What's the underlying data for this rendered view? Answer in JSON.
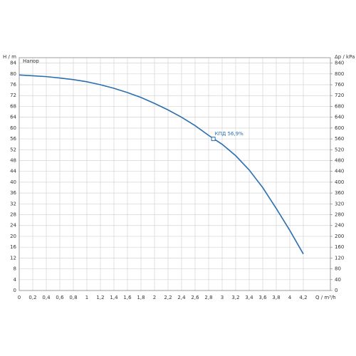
{
  "chart_data": {
    "type": "line",
    "y_label": "H / m",
    "series_label": "Напор",
    "y2_label": "Δp / kPa",
    "x_label": "Q / m³/h",
    "x": [
      0,
      0.2,
      0.4,
      0.6,
      0.8,
      1.0,
      1.2,
      1.4,
      1.6,
      1.8,
      2.0,
      2.2,
      2.4,
      2.6,
      2.8,
      3.0,
      3.2,
      3.4,
      3.6,
      3.8,
      4.0,
      4.2
    ],
    "series": [
      {
        "color": "#2a6fb0",
        "values": [
          79.6,
          79.3,
          79.0,
          78.5,
          77.9,
          77.1,
          76.0,
          74.7,
          73.1,
          71.3,
          69.1,
          66.7,
          64.0,
          60.9,
          57.3,
          54.0,
          49.8,
          44.5,
          38.0,
          30.3,
          22.2,
          13.5
        ]
      }
    ],
    "marker": {
      "x": 2.87,
      "y": 56,
      "label": "КПД 56,9%"
    },
    "xlim": [
      0,
      4.6
    ],
    "xticks": [
      0,
      {
        "value": 0.2,
        "label": "0,2"
      },
      {
        "value": 0.4,
        "label": "0,4"
      },
      {
        "value": 0.6,
        "label": "0,6"
      },
      {
        "value": 0.8,
        "label": "0,8"
      },
      1,
      {
        "value": 1.2,
        "label": "1,2"
      },
      {
        "value": 1.4,
        "label": "1,4"
      },
      {
        "value": 1.6,
        "label": "1,6"
      },
      {
        "value": 1.8,
        "label": "1,8"
      },
      2,
      {
        "value": 2.2,
        "label": "2,2"
      },
      {
        "value": 2.4,
        "label": "2,4"
      },
      {
        "value": 2.6,
        "label": "2,6"
      },
      {
        "value": 2.8,
        "label": "2,8"
      },
      3,
      {
        "value": 3.2,
        "label": "3,2"
      },
      {
        "value": 3.4,
        "label": "3,4"
      },
      {
        "value": 3.6,
        "label": "3,6"
      },
      {
        "value": 3.8,
        "label": "3,8"
      },
      4,
      {
        "value": 4.2,
        "label": "4,2"
      }
    ],
    "ylim": [
      0,
      86
    ],
    "yticks": [
      0,
      4,
      8,
      12,
      16,
      20,
      24,
      28,
      32,
      36,
      40,
      44,
      48,
      52,
      56,
      60,
      64,
      68,
      72,
      76,
      80,
      84
    ],
    "y2lim": [
      0,
      860
    ],
    "y2ticks": [
      0,
      40,
      80,
      120,
      160,
      200,
      240,
      280,
      320,
      360,
      400,
      440,
      480,
      520,
      560,
      600,
      640,
      680,
      720,
      760,
      800,
      840
    ],
    "grid": true
  }
}
